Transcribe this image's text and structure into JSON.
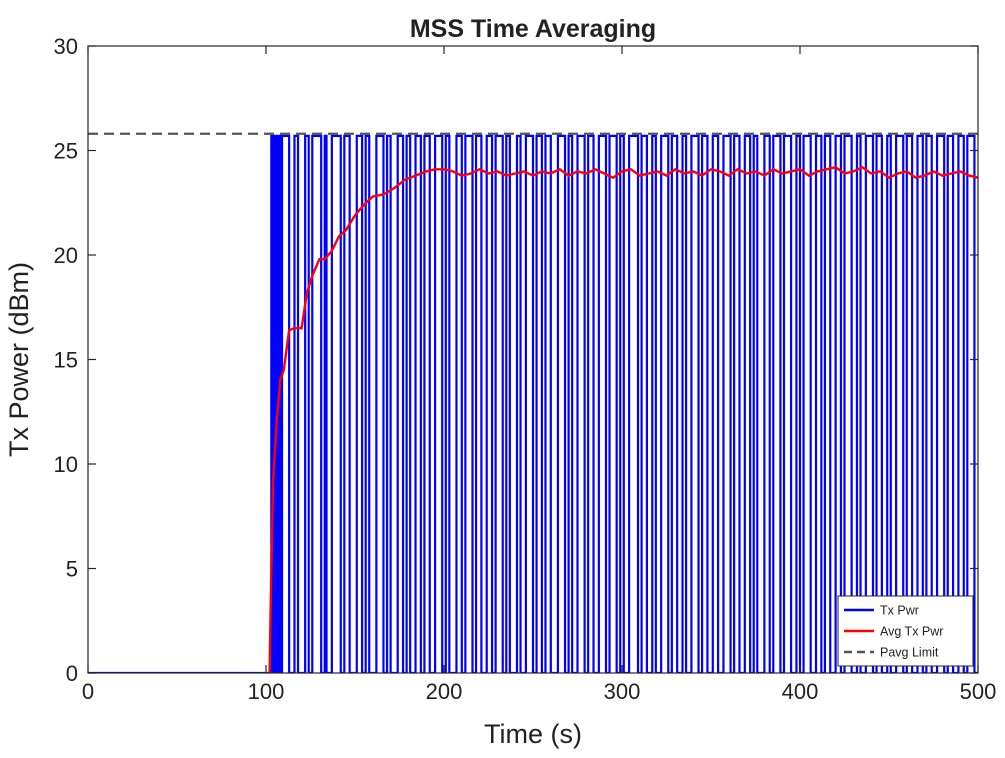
{
  "chart_data": {
    "type": "line",
    "title": "MSS Time Averaging",
    "xlabel": "Time (s)",
    "ylabel": "Tx Power (dBm)",
    "xlim": [
      0,
      500
    ],
    "ylim": [
      0,
      30
    ],
    "xticks": [
      0,
      100,
      200,
      300,
      400,
      500
    ],
    "yticks": [
      0,
      5,
      10,
      15,
      20,
      25,
      30
    ],
    "grid": false,
    "legend_position": "bottom-right",
    "series": [
      {
        "name": "Tx Pwr",
        "color": "#0000ff",
        "style": "solid",
        "on_level": 25.7,
        "off_level": 0,
        "start_time": 102,
        "end_time": 500,
        "description_values": "square-wave bursts alternating between 0 dBm and ~25.7 dBm from ~102 s to 500 s",
        "pulses": [
          [
            103,
            104
          ],
          [
            105,
            106
          ],
          [
            107,
            108
          ],
          [
            109,
            113
          ],
          [
            116,
            118
          ],
          [
            122,
            124
          ],
          [
            126,
            131
          ],
          [
            133,
            134
          ],
          [
            137,
            142
          ],
          [
            144,
            147
          ],
          [
            151,
            154
          ],
          [
            156,
            158
          ],
          [
            162,
            166
          ],
          [
            168,
            170
          ],
          [
            174,
            177
          ],
          [
            179,
            181
          ],
          [
            184,
            187
          ],
          [
            189,
            192
          ],
          [
            195,
            199
          ],
          [
            201,
            203
          ],
          [
            207,
            210
          ],
          [
            212,
            216
          ],
          [
            218,
            221
          ],
          [
            224,
            227
          ],
          [
            229,
            233
          ],
          [
            235,
            237
          ],
          [
            241,
            243
          ],
          [
            246,
            250
          ],
          [
            252,
            255
          ],
          [
            257,
            260
          ],
          [
            264,
            268
          ],
          [
            270,
            272
          ],
          [
            275,
            279
          ],
          [
            281,
            284
          ],
          [
            287,
            291
          ],
          [
            293,
            297
          ],
          [
            299,
            301
          ],
          [
            304,
            309
          ],
          [
            311,
            314
          ],
          [
            317,
            319
          ],
          [
            322,
            326
          ],
          [
            328,
            331
          ],
          [
            334,
            336
          ],
          [
            339,
            343
          ],
          [
            345,
            348
          ],
          [
            351,
            354
          ],
          [
            357,
            361
          ],
          [
            363,
            366
          ],
          [
            369,
            372
          ],
          [
            374,
            376
          ],
          [
            380,
            383
          ],
          [
            385,
            389
          ],
          [
            391,
            395
          ],
          [
            398,
            400
          ],
          [
            402,
            406
          ],
          [
            409,
            412
          ],
          [
            414,
            417
          ],
          [
            420,
            423
          ],
          [
            425,
            429
          ],
          [
            432,
            434
          ],
          [
            437,
            441
          ],
          [
            443,
            446
          ],
          [
            449,
            451
          ],
          [
            454,
            458
          ],
          [
            460,
            463
          ],
          [
            466,
            469
          ],
          [
            471,
            474
          ],
          [
            477,
            481
          ],
          [
            483,
            486
          ],
          [
            489,
            492
          ],
          [
            494,
            498
          ]
        ]
      },
      {
        "name": "Avg Tx Pwr",
        "color": "#ff0000",
        "style": "solid",
        "x": [
          102,
          103,
          104,
          106,
          108,
          110,
          113,
          116,
          120,
          123,
          126,
          130,
          133,
          137,
          141,
          145,
          150,
          155,
          160,
          166,
          172,
          178,
          184,
          190,
          195,
          200,
          205,
          210,
          215,
          220,
          225,
          230,
          235,
          240,
          245,
          250,
          255,
          260,
          265,
          270,
          275,
          280,
          285,
          290,
          295,
          300,
          305,
          310,
          315,
          320,
          325,
          330,
          335,
          340,
          345,
          350,
          355,
          360,
          365,
          370,
          375,
          380,
          385,
          390,
          395,
          400,
          405,
          410,
          415,
          420,
          425,
          430,
          435,
          440,
          445,
          450,
          455,
          460,
          465,
          470,
          475,
          480,
          485,
          490,
          495,
          500
        ],
        "y": [
          0,
          5,
          9.2,
          12,
          14,
          14.5,
          16.4,
          16.5,
          16.5,
          18.2,
          19,
          19.8,
          19.8,
          20.2,
          20.9,
          21.2,
          21.9,
          22.4,
          22.8,
          22.9,
          23.2,
          23.6,
          23.8,
          24.0,
          24.1,
          24.1,
          24.0,
          23.8,
          23.9,
          24.1,
          23.9,
          24.0,
          23.8,
          23.9,
          24.0,
          23.8,
          24.0,
          23.9,
          24.1,
          23.8,
          24.0,
          23.9,
          24.1,
          23.9,
          23.7,
          24.0,
          24.1,
          23.8,
          23.9,
          24.0,
          23.8,
          24.1,
          23.9,
          24.0,
          23.8,
          24.1,
          24.0,
          23.8,
          24.1,
          23.9,
          24.0,
          23.8,
          24.1,
          23.9,
          24.0,
          24.1,
          23.8,
          24.0,
          24.1,
          24.2,
          23.9,
          24.0,
          24.2,
          23.9,
          24.0,
          23.7,
          23.9,
          24.0,
          23.7,
          23.8,
          24.0,
          23.8,
          23.9,
          24.0,
          23.8,
          23.7
        ]
      },
      {
        "name": "Pavg Limit",
        "color": "#555555",
        "style": "dashed",
        "x": [
          0,
          500
        ],
        "y": [
          25.8,
          25.8
        ]
      }
    ]
  }
}
